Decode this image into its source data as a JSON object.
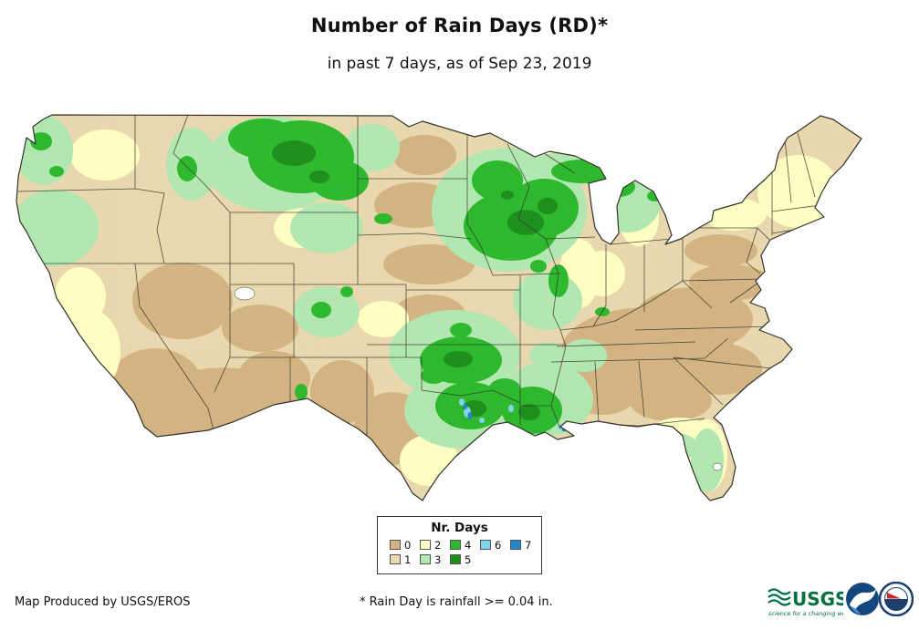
{
  "header": {
    "title": "Number of Rain Days (RD)*",
    "subtitle": "in past 7 days, as of Sep 23, 2019"
  },
  "map": {
    "name": "conus-rain-days-choropleth",
    "region": "Continental United States",
    "border_color": "#32322a",
    "background": "#ffffff"
  },
  "legend": {
    "title": "Nr. Days",
    "items": [
      {
        "label": "0",
        "color": "#d4b483"
      },
      {
        "label": "1",
        "color": "#ead9b0"
      },
      {
        "label": "2",
        "color": "#ffffc4"
      },
      {
        "label": "3",
        "color": "#b2e8b2"
      },
      {
        "label": "4",
        "color": "#2db92d"
      },
      {
        "label": "5",
        "color": "#1d8f1d"
      },
      {
        "label": "6",
        "color": "#7fd4f2"
      },
      {
        "label": "7",
        "color": "#2187c9"
      }
    ],
    "rows": [
      [
        "0",
        "2",
        "4",
        "6",
        "7"
      ],
      [
        "1",
        "3",
        "5"
      ]
    ]
  },
  "footer": {
    "credit": "Map Produced by USGS/EROS",
    "note": "* Rain Day is rainfall >= 0.04 in."
  },
  "logos": {
    "usgs": {
      "text": "USGS",
      "tagline": "science for a changing world",
      "color": "#006f41"
    },
    "noaa": {
      "icon": "noaa-circle-logo",
      "color": "#15477f",
      "accent": "#4a8fd2"
    },
    "nws": {
      "icon": "nws-circle-logo",
      "color": "#1c3f6e",
      "accent": "#cc2229"
    }
  }
}
